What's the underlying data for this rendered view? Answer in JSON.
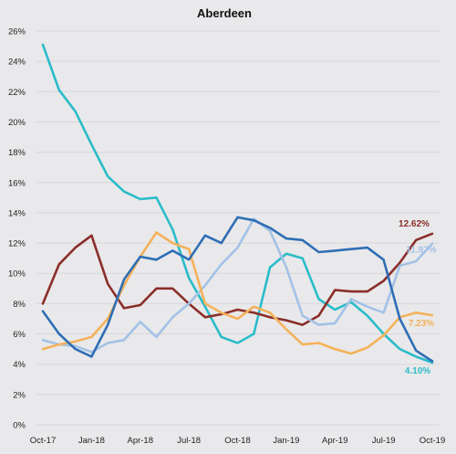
{
  "chart_data": {
    "type": "line",
    "title": "Aberdeen",
    "xlabel": "",
    "ylabel": "",
    "ylim": [
      0,
      26
    ],
    "y_ticks": [
      "0%",
      "2%",
      "4%",
      "6%",
      "8%",
      "10%",
      "12%",
      "14%",
      "16%",
      "18%",
      "20%",
      "22%",
      "24%",
      "26%"
    ],
    "x_tick_labels": [
      "Oct-17",
      "Jan-18",
      "Apr-18",
      "Jul-18",
      "Oct-18",
      "Jan-19",
      "Apr-19",
      "Jul-19",
      "Oct-19"
    ],
    "x_count": 25,
    "grid": true,
    "legend": "none",
    "series": [
      {
        "color": "#2bbcc9",
        "values": [
          25.1,
          22.1,
          20.7,
          18.5,
          16.4,
          15.4,
          14.9,
          15.0,
          12.9,
          9.7,
          7.8,
          5.8,
          5.4,
          6.0,
          10.4,
          11.3,
          11.0,
          8.3,
          7.6,
          8.1,
          7.2,
          6.0,
          5.0,
          4.5,
          4.1
        ],
        "end_label": "4.10%"
      },
      {
        "color": "#8b2e2a",
        "values": [
          8.0,
          10.6,
          11.7,
          12.5,
          9.3,
          7.7,
          7.9,
          9.0,
          9.0,
          8.0,
          7.1,
          7.3,
          7.6,
          7.4,
          7.1,
          6.9,
          6.6,
          7.2,
          8.9,
          8.8,
          8.8,
          9.5,
          10.7,
          12.2,
          12.62
        ],
        "end_label": "12.62%"
      },
      {
        "color": "#a3c2e6",
        "values": [
          5.6,
          5.3,
          5.2,
          4.8,
          5.4,
          5.6,
          6.8,
          5.8,
          7.1,
          8.0,
          9.2,
          10.6,
          11.7,
          13.6,
          12.8,
          10.4,
          7.2,
          6.6,
          6.7,
          8.3,
          7.8,
          7.4,
          10.5,
          10.8,
          11.97
        ],
        "end_label": "11.97%"
      },
      {
        "color": "#f4b25a",
        "values": [
          5.0,
          5.3,
          5.5,
          5.8,
          7.0,
          9.2,
          11.1,
          12.7,
          12.0,
          11.6,
          8.0,
          7.4,
          7.0,
          7.8,
          7.4,
          6.3,
          5.3,
          5.4,
          5.0,
          4.7,
          5.1,
          5.9,
          7.1,
          7.4,
          7.23
        ],
        "end_label": "7.23%"
      },
      {
        "color": "#2f6eb5",
        "values": [
          7.5,
          6.0,
          5.0,
          4.5,
          6.6,
          9.6,
          11.1,
          10.9,
          11.5,
          10.9,
          12.5,
          12.0,
          13.7,
          13.5,
          13.0,
          12.3,
          12.2,
          11.4,
          11.5,
          11.6,
          11.7,
          10.9,
          7.0,
          4.9,
          4.2
        ]
      }
    ]
  }
}
